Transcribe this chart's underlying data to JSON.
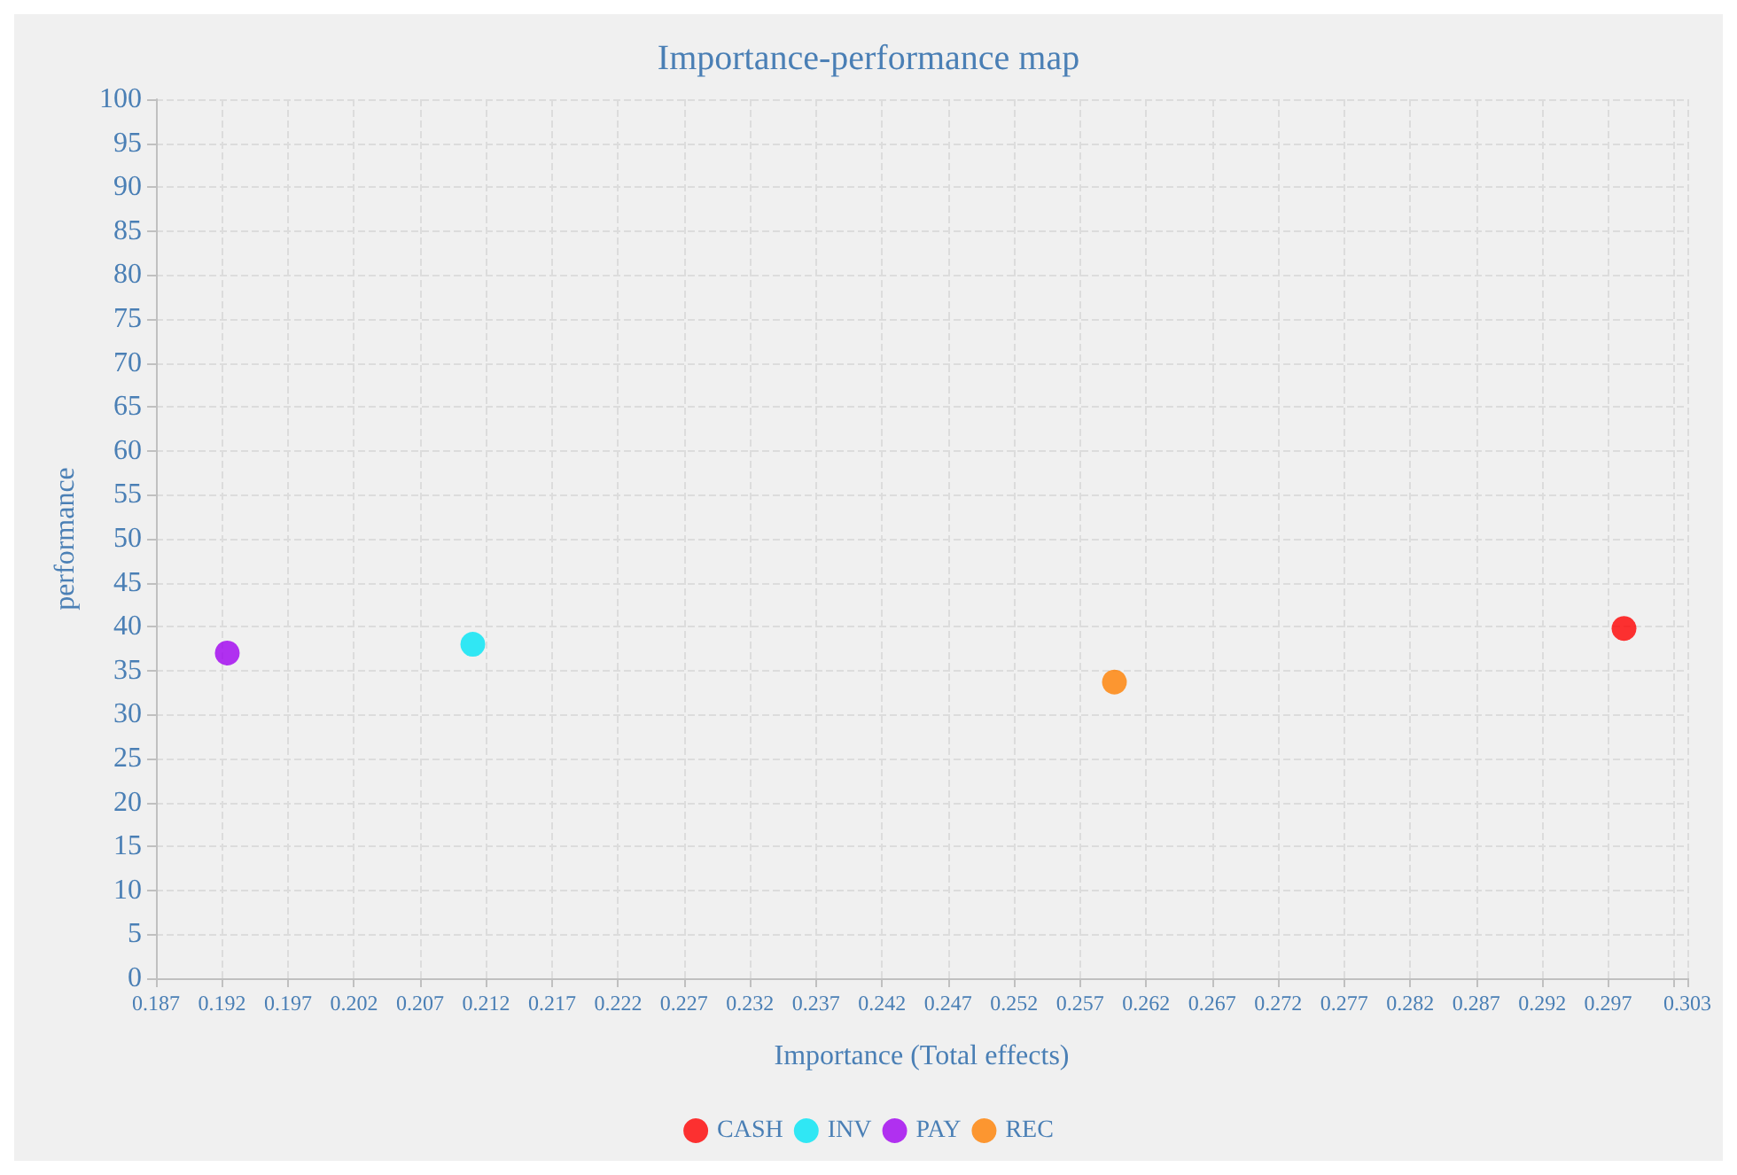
{
  "chart_data": {
    "type": "scatter",
    "title": "Importance-performance map",
    "xlabel": "Importance (Total effects)",
    "ylabel": "performance",
    "xlim": [
      0.187,
      0.303
    ],
    "xticks": [
      0.187,
      0.192,
      0.197,
      0.202,
      0.207,
      0.212,
      0.217,
      0.222,
      0.227,
      0.232,
      0.237,
      0.242,
      0.247,
      0.252,
      0.257,
      0.262,
      0.267,
      0.272,
      0.277,
      0.282,
      0.287,
      0.292,
      0.297,
      {
        "value": 0.302,
        "label": null
      },
      0.303
    ],
    "ylim": [
      0,
      100
    ],
    "yticks": [
      0,
      5,
      10,
      15,
      20,
      25,
      30,
      35,
      40,
      45,
      50,
      55,
      60,
      65,
      70,
      75,
      80,
      85,
      90,
      95,
      100
    ],
    "grid": true,
    "legend": "bottom",
    "marker": "circle",
    "series": [
      {
        "name": "CASH",
        "color": "#ff0000",
        "x": [
          0.2982
        ],
        "values": [
          39.8
        ]
      },
      {
        "name": "INV",
        "color": "#00e5f5",
        "x": [
          0.211
        ],
        "values": [
          38.0
        ]
      },
      {
        "name": "PAY",
        "color": "#a000f0",
        "x": [
          0.1924
        ],
        "values": [
          37.0
        ]
      },
      {
        "name": "REC",
        "color": "#ff8000",
        "x": [
          0.2596
        ],
        "values": [
          33.7
        ]
      }
    ]
  }
}
